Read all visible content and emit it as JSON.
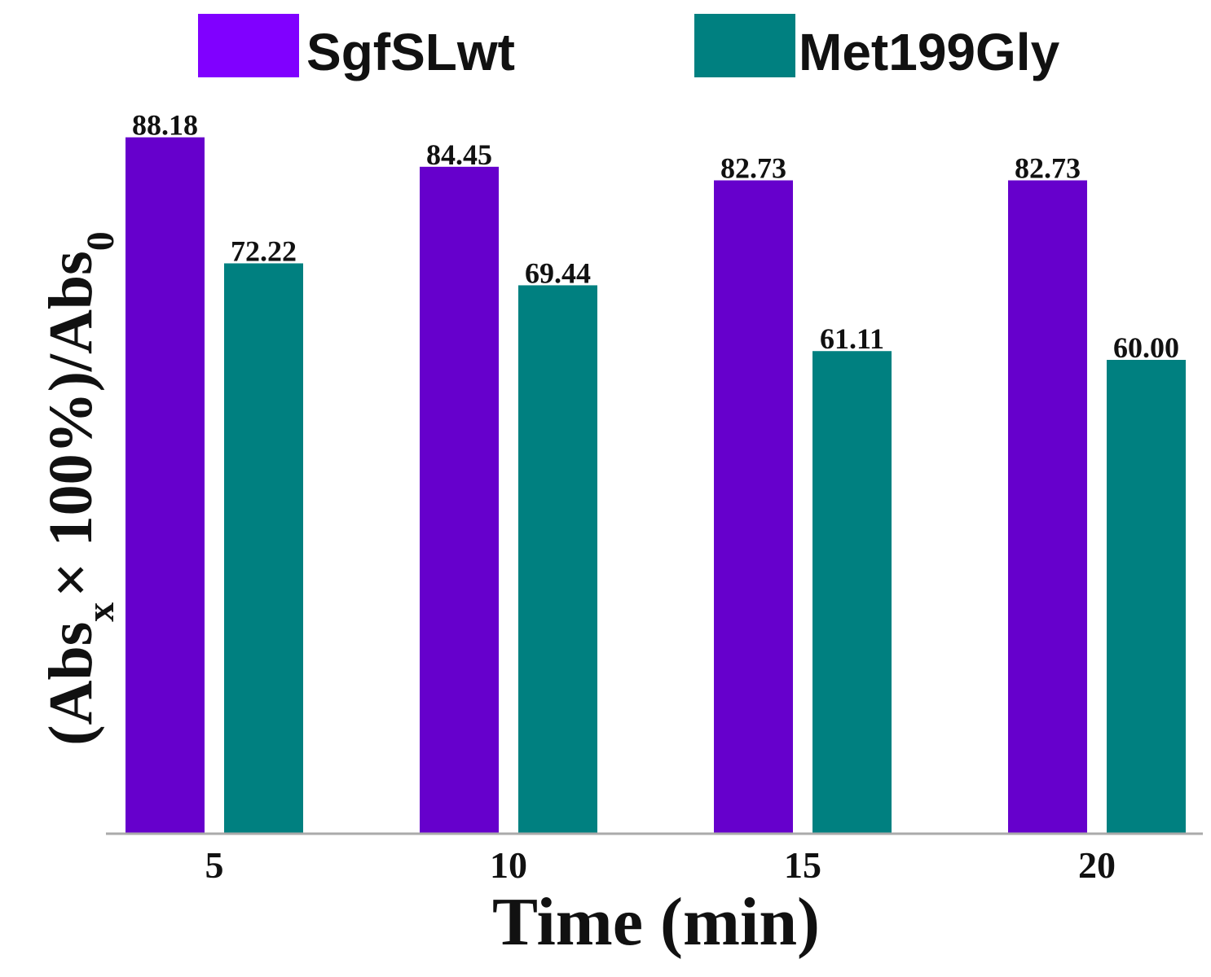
{
  "chart_data": {
    "type": "bar",
    "categories": [
      "5",
      "10",
      "15",
      "20"
    ],
    "series": [
      {
        "name": "SgfSLwt",
        "values": [
          88.18,
          84.45,
          82.73,
          82.73
        ],
        "labels": [
          "88.18",
          "84.45",
          "82.73",
          "82.73"
        ],
        "color": "#6600cc"
      },
      {
        "name": "Met199Gly",
        "values": [
          72.22,
          69.44,
          61.11,
          60.0
        ],
        "labels": [
          "72.22",
          "69.44",
          "61.11",
          "60.00"
        ],
        "color": "#008080"
      }
    ],
    "legend_colors": [
      "#8000ff",
      "#008080"
    ],
    "xlabel": "Time (min)",
    "ylabel": {
      "open": "(Abs",
      "sub1": "x",
      "mid": "× 100%)/Abs",
      "sub2": "0"
    },
    "ylim": [
      0,
      100
    ],
    "grid": false,
    "legend_position": "top"
  }
}
